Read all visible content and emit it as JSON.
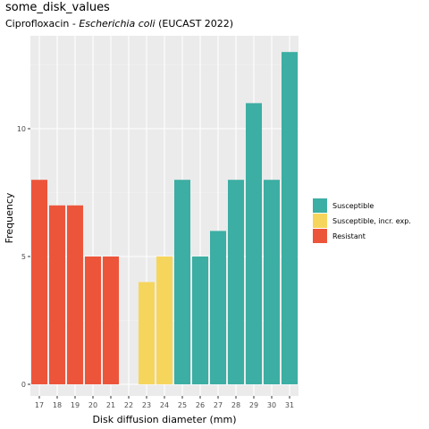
{
  "chart_data": {
    "type": "bar",
    "title": "some_disk_values",
    "subtitle": {
      "prefix": "Ciprofloxacin - ",
      "organism": "Escherichia coli",
      "suffix": " (EUCAST 2022)"
    },
    "xlabel": "Disk diffusion diameter (mm)",
    "ylabel": "Frequency",
    "categories": [
      "17",
      "18",
      "19",
      "20",
      "21",
      "22",
      "23",
      "24",
      "25",
      "26",
      "27",
      "28",
      "29",
      "30",
      "31"
    ],
    "values": [
      8,
      7,
      7,
      5,
      5,
      0,
      4,
      5,
      8,
      5,
      6,
      8,
      11,
      8,
      13
    ],
    "interpretation": [
      "Resistant",
      "Resistant",
      "Resistant",
      "Resistant",
      "Resistant",
      "",
      "Susceptible, incr. exp.",
      "Susceptible, incr. exp.",
      "Susceptible",
      "Susceptible",
      "Susceptible",
      "Susceptible",
      "Susceptible",
      "Susceptible",
      "Susceptible"
    ],
    "ylim": [
      0,
      13
    ],
    "yticks": [
      0,
      5,
      10
    ],
    "grid": true,
    "legend": {
      "placement": "right",
      "entries": [
        {
          "label": "Susceptible",
          "color": "#3CAEA3"
        },
        {
          "label": "Susceptible, incr. exp.",
          "color": "#F6D55C"
        },
        {
          "label": "Resistant",
          "color": "#ED553B"
        }
      ]
    }
  }
}
